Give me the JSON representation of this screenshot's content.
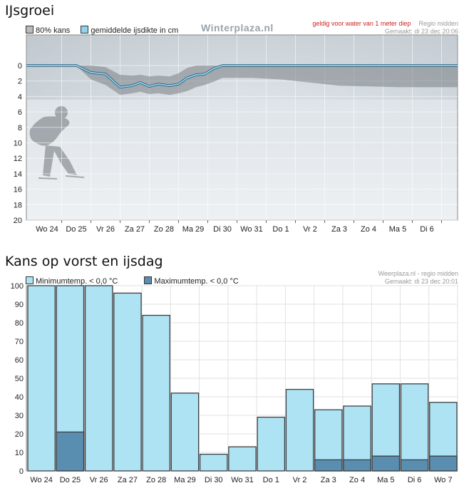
{
  "ice": {
    "title": "IJsgroei",
    "legend": [
      {
        "label": "80% kans",
        "color": "#bbbbbb"
      },
      {
        "label": "gemiddelde ijsdikte in cm",
        "color": "#8fd3ef"
      }
    ],
    "watermark": "Winterplaza.nl",
    "warning": "geldig voor water van 1 meter diep",
    "region": "Regio midden",
    "made": "Gemaakt: di 23 dec 20:06"
  },
  "frost": {
    "title": "Kans op vorst en ijsdag",
    "legend": [
      {
        "label": "Minimumtemp. < 0,0 °C",
        "color": "#aee3f4"
      },
      {
        "label": "Maximumtemp. < 0,0 °C",
        "color": "#5a8eb1"
      }
    ],
    "source": "Weerplaza.nl - regio midden",
    "made": "Gemaakt: di 23 dec 20:01"
  },
  "chart_data": [
    {
      "type": "area",
      "title": "IJsgroei",
      "ylabel": "",
      "y_inverted": true,
      "ylim": [
        0,
        20
      ],
      "y_ticks": [
        0,
        2,
        4,
        6,
        8,
        10,
        12,
        14,
        16,
        18,
        20
      ],
      "categories": [
        "Wo 24",
        "Do 25",
        "Vr 26",
        "Za 27",
        "Zo 28",
        "Ma 29",
        "Di 30",
        "Wo 31",
        "Do 1",
        "Vr 2",
        "Za 3",
        "Zo 4",
        "Ma 5",
        "Di 6"
      ],
      "grid": true,
      "series": [
        {
          "name": "gemiddelde ijsdikte in cm",
          "color": "#8fd3ef",
          "x": [
            0,
            1,
            1.5,
            2,
            2.5,
            2.9,
            3.2,
            3.5,
            3.8,
            4.2,
            4.5,
            4.8,
            5.1,
            5.4,
            5.7,
            6,
            7,
            8,
            9,
            10,
            11,
            12,
            13,
            14
          ],
          "values": [
            0,
            0,
            0.9,
            1.1,
            2.8,
            2.6,
            2.2,
            2.7,
            2.4,
            2.6,
            2.4,
            1.6,
            1.2,
            1.1,
            0.4,
            0,
            0,
            0,
            0,
            0,
            0,
            0,
            0,
            0
          ]
        },
        {
          "name": "80% kans",
          "color": "#9a9a9a",
          "x": [
            0,
            1,
            1.5,
            2,
            2.5,
            2.9,
            3.2,
            3.5,
            3.8,
            4.2,
            4.5,
            4.8,
            5.1,
            5.4,
            5.7,
            6,
            7,
            8,
            9,
            10,
            11,
            12,
            13,
            14
          ],
          "lower": [
            0,
            0,
            0,
            0.2,
            1.2,
            1.3,
            1.2,
            1.4,
            1.3,
            1.4,
            1.0,
            0.3,
            0,
            0,
            0,
            0,
            0,
            0,
            0,
            0,
            0,
            0,
            0,
            0
          ],
          "upper": [
            0,
            0,
            1.8,
            2.5,
            3.8,
            3.6,
            3.4,
            3.7,
            3.6,
            3.8,
            3.6,
            3.3,
            2.8,
            2.5,
            2.1,
            1.6,
            1.6,
            1.8,
            2.2,
            2.6,
            2.7,
            2.8,
            2.8,
            2.8
          ]
        }
      ]
    },
    {
      "type": "bar",
      "title": "Kans op vorst en ijsdag",
      "ylim": [
        0,
        100
      ],
      "y_ticks": [
        0,
        10,
        20,
        30,
        40,
        50,
        60,
        70,
        80,
        90,
        100
      ],
      "grid": true,
      "categories": [
        "Wo 24",
        "Do 25",
        "Vr 26",
        "Za 27",
        "Zo 28",
        "Ma 29",
        "Di 30",
        "Wo 31",
        "Do 1",
        "Vr 2",
        "Za 3",
        "Zo 4",
        "Ma 5",
        "Di 6",
        "Wo 7"
      ],
      "series": [
        {
          "name": "Minimumtemp. < 0,0 °C",
          "color": "#aee3f4",
          "values": [
            100,
            100,
            100,
            96,
            84,
            42,
            9,
            13,
            29,
            44,
            33,
            35,
            47,
            47,
            37
          ]
        },
        {
          "name": "Maximumtemp. < 0,0 °C",
          "color": "#5a8eb1",
          "values": [
            0,
            21,
            0,
            0,
            0,
            0,
            0,
            0,
            0,
            0,
            6,
            6,
            8,
            6,
            8
          ]
        }
      ]
    }
  ]
}
